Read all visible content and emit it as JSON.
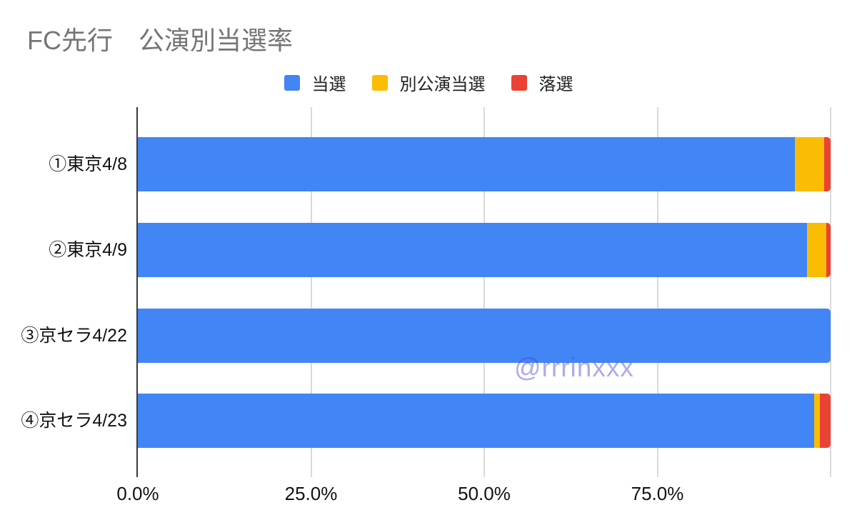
{
  "watermark": {
    "text": "@rrrinxxx"
  },
  "chart_data": {
    "type": "bar",
    "orientation": "horizontal",
    "stacked": true,
    "title": "FC先行　公演別当選率",
    "categories": [
      "①東京4/8",
      "②東京4/9",
      "③京セラ4/22",
      "④京セラ4/23"
    ],
    "series": [
      {
        "name": "当選",
        "color": "#4285F4",
        "values": [
          94.8,
          96.6,
          100,
          97.6
        ]
      },
      {
        "name": "別公演当選",
        "color": "#FBBC04",
        "values": [
          4.3,
          2.8,
          0,
          0.9
        ]
      },
      {
        "name": "落選",
        "color": "#EA4335",
        "values": [
          0.9,
          0.6,
          0,
          1.5
        ]
      }
    ],
    "x_axis": {
      "range": [
        0,
        100
      ],
      "tick_labels": [
        "0.0%",
        "25.0%",
        "50.0%",
        "75.0%"
      ],
      "tick_values": [
        0,
        25,
        50,
        75
      ],
      "gridline_values": [
        25,
        50,
        75,
        100
      ],
      "unit": "percent"
    },
    "legend_position": "top",
    "grid": true,
    "colors": {
      "axis_line": "#3a3a3a",
      "gridline": "#d9d9d9",
      "title_text": "#757575",
      "label_text": "#111111"
    }
  }
}
